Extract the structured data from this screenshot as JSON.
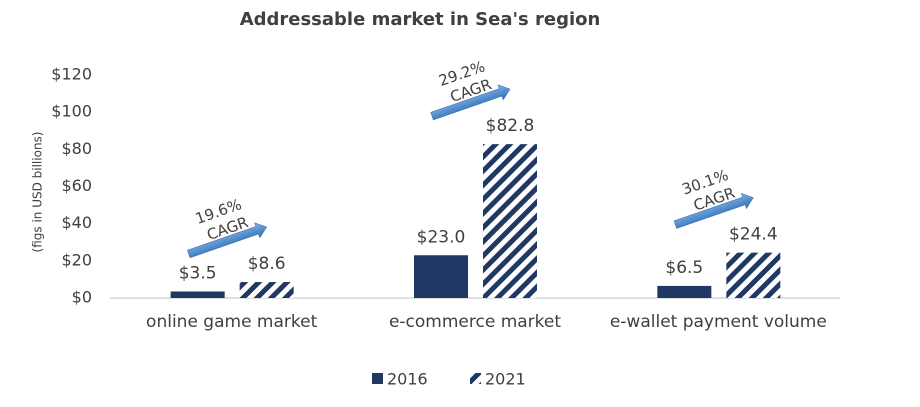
{
  "chart_data": {
    "type": "bar",
    "title": "Addressable market in Sea's region",
    "ylabel": "(figs in USD billions)",
    "categories": [
      "online game market",
      "e-commerce market",
      "e-wallet payment volume"
    ],
    "series": [
      {
        "name": "2016",
        "color": "#1f3864",
        "values": [
          3.5,
          23.0,
          6.5
        ],
        "value_labels": [
          "$3.5",
          "$23.0",
          "$6.5"
        ]
      },
      {
        "name": "2021",
        "color": "#1f3864",
        "hatch": true,
        "values": [
          8.6,
          82.8,
          24.4
        ],
        "value_labels": [
          "$8.6",
          "$82.8",
          "$24.4"
        ]
      }
    ],
    "annotations": [
      [
        "19.6%",
        "CAGR"
      ],
      [
        "29.2%",
        "CAGR"
      ],
      [
        "30.1%",
        "CAGR"
      ]
    ],
    "ylim": [
      0,
      120
    ],
    "yticks": [
      {
        "value": 0,
        "label": "$0"
      },
      {
        "value": 20,
        "label": "$20"
      },
      {
        "value": 40,
        "label": "$40"
      },
      {
        "value": 60,
        "label": "$60"
      },
      {
        "value": 80,
        "label": "$80"
      },
      {
        "value": 100,
        "label": "$100"
      },
      {
        "value": 120,
        "label": "$120"
      }
    ],
    "grid": false,
    "legend": "bottom"
  }
}
